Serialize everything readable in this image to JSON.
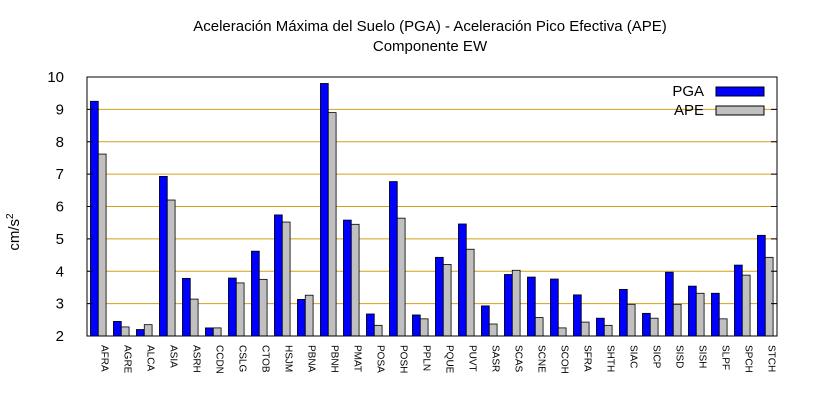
{
  "chart_data": {
    "type": "bar",
    "title": "Aceleración Máxima del Suelo (PGA) -  Aceleración Pico Efectiva (APE)",
    "subtitle": "Componente EW",
    "ylabel": "cm/s",
    "ylabel_sup": "2",
    "ylim": [
      2,
      10
    ],
    "yticks": [
      "2",
      "3",
      "4",
      "5",
      "6",
      "7",
      "8",
      "9",
      "10"
    ],
    "grid": true,
    "legend_position": "top-right",
    "categories": [
      "AFRA",
      "AGRE",
      "ALCA",
      "ASIA",
      "ASRH",
      "CCDN",
      "CSLG",
      "CTOB",
      "HSJM",
      "PBNA",
      "PBNH",
      "PMAT",
      "POSA",
      "POSH",
      "PPLN",
      "PQUE",
      "PUVT",
      "SASR",
      "SCAS",
      "SCNE",
      "SCOH",
      "SFRA",
      "SHTH",
      "SIAC",
      "SICP",
      "SISD",
      "SISH",
      "SLPF",
      "SPCH",
      "STCH"
    ],
    "series": [
      {
        "name": "PGA",
        "color": "#0000ff",
        "values": [
          9.25,
          2.45,
          2.2,
          6.93,
          3.78,
          2.25,
          3.79,
          4.62,
          5.74,
          3.13,
          9.8,
          5.58,
          2.68,
          6.77,
          2.65,
          4.43,
          5.46,
          2.93,
          3.9,
          3.82,
          3.76,
          3.27,
          2.55,
          3.44,
          2.7,
          3.97,
          3.54,
          3.32,
          4.19,
          5.11
        ]
      },
      {
        "name": "APE",
        "color": "#c0c0c0",
        "values": [
          7.62,
          2.28,
          2.35,
          6.2,
          3.14,
          2.25,
          3.64,
          3.75,
          5.52,
          3.26,
          8.9,
          5.45,
          2.33,
          5.64,
          2.53,
          4.21,
          4.68,
          2.37,
          4.03,
          2.57,
          2.25,
          2.43,
          2.33,
          2.98,
          2.55,
          2.98,
          3.32,
          2.53,
          3.88,
          4.43
        ]
      }
    ]
  }
}
